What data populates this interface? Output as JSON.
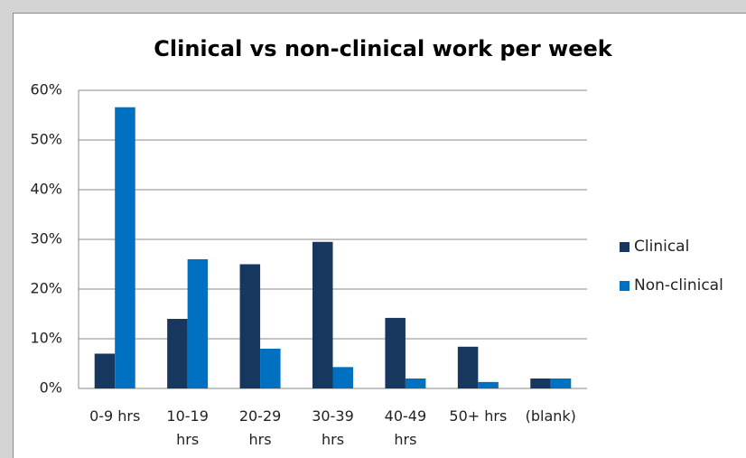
{
  "chart_data": {
    "type": "bar",
    "title": "Clinical vs non-clinical work per week",
    "categories": [
      "0-9 hrs",
      "10-19 hrs",
      "20-29 hrs",
      "30-39 hrs",
      "40-49 hrs",
      "50+ hrs",
      "(blank)"
    ],
    "series": [
      {
        "name": "Clinical",
        "color": "#17375e",
        "values": [
          7,
          14,
          25,
          29.5,
          14.2,
          8.4,
          2
        ]
      },
      {
        "name": "Non-clinical",
        "color": "#0070c0",
        "values": [
          56.6,
          26,
          8,
          4.3,
          2,
          1.3,
          2
        ]
      }
    ],
    "ylim": [
      0,
      60
    ],
    "yticks": [
      {
        "value": 0,
        "label": "0%"
      },
      {
        "value": 10,
        "label": "10%"
      },
      {
        "value": 20,
        "label": "20%"
      },
      {
        "value": 30,
        "label": "30%"
      },
      {
        "value": 40,
        "label": "40%"
      },
      {
        "value": 50,
        "label": "50%"
      },
      {
        "value": 60,
        "label": "60%"
      }
    ],
    "grid": true,
    "legend": "right"
  }
}
